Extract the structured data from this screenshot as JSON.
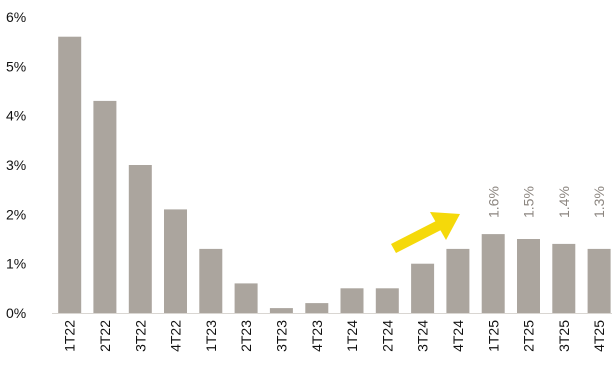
{
  "chart_data": {
    "type": "bar",
    "title": "",
    "xlabel": "",
    "ylabel": "",
    "ylim": [
      0,
      6
    ],
    "yticks": [
      0,
      1,
      2,
      3,
      4,
      5,
      6
    ],
    "ytick_labels": [
      "0%",
      "1%",
      "2%",
      "3%",
      "4%",
      "5%",
      "6%"
    ],
    "categories": [
      "1T22",
      "2T22",
      "3T22",
      "4T22",
      "1T23",
      "2T23",
      "3T23",
      "4T23",
      "1T24",
      "2T24",
      "3T24",
      "4T24",
      "1T25",
      "2T25",
      "3T25",
      "4T25"
    ],
    "values": [
      5.6,
      4.3,
      3.0,
      2.1,
      1.3,
      0.6,
      0.1,
      0.2,
      0.5,
      0.5,
      1.0,
      1.3,
      1.6,
      1.5,
      1.4,
      1.3
    ],
    "data_labels": [
      "",
      "",
      "",
      "",
      "",
      "",
      "",
      "",
      "",
      "",
      "",
      "",
      "1.6%",
      "1.5%",
      "1.4%",
      "1.3%"
    ],
    "grid": false,
    "legend": "none",
    "colors": {
      "bar": "#aba59e",
      "data_label": "#8c8680",
      "arrow": "#f5d90a"
    },
    "annotation": {
      "icon": "up-arrow-icon",
      "from_category": "2T24",
      "to_category": "4T24"
    }
  }
}
